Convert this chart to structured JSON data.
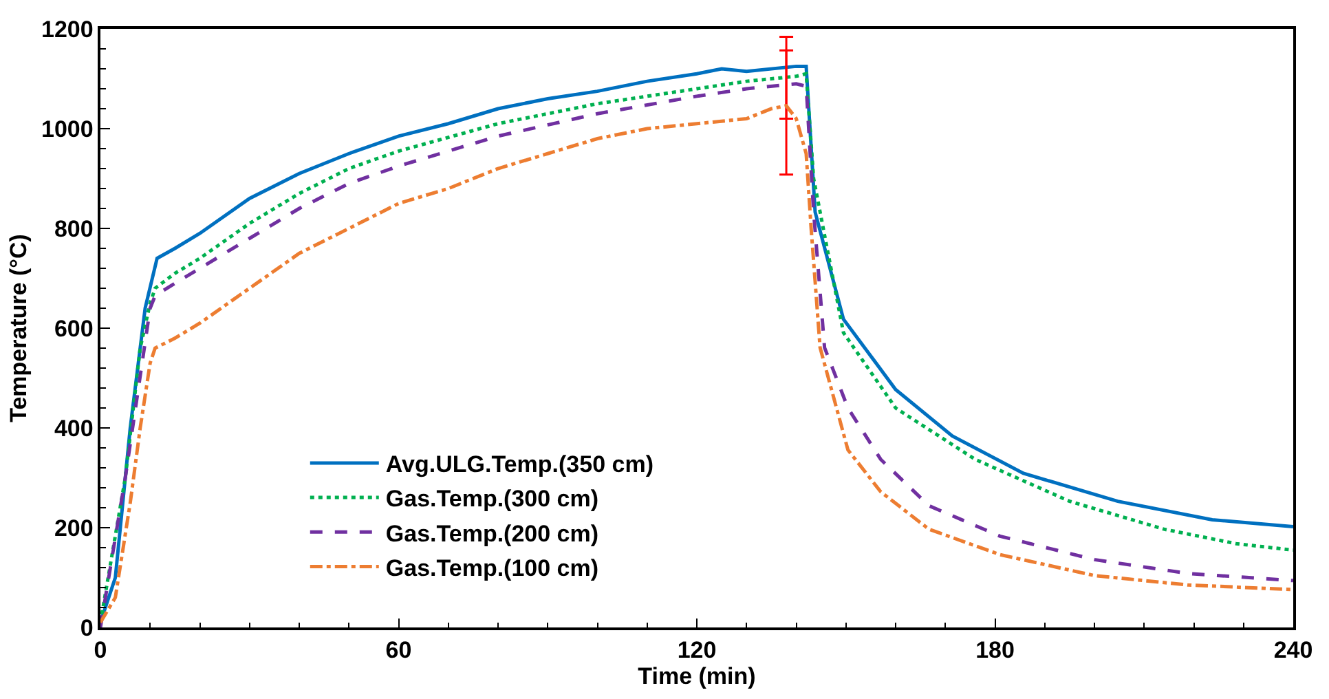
{
  "chart_data": {
    "type": "line",
    "xlabel": "Time (min)",
    "ylabel": "Temperature (°C)",
    "xlim": [
      0,
      240
    ],
    "xticks": [
      0,
      60,
      120,
      180,
      240
    ],
    "ylim": [
      0,
      1200
    ],
    "yticks": [
      0,
      200,
      400,
      600,
      800,
      1000,
      1200
    ],
    "legend": "bottom left",
    "marker": "none",
    "series": [
      {
        "name": "Avg.ULG.Temp.(350 cm)",
        "color": "#0070c0",
        "line_style": "solid",
        "x": [
          0,
          3,
          6,
          9,
          11.4,
          15,
          20,
          30,
          40,
          50,
          60,
          70,
          80,
          90,
          100,
          110,
          120,
          125,
          130,
          140,
          142,
          143.8,
          149.5,
          160,
          171.4,
          185.7,
          204.7,
          223.7,
          240
        ],
        "values": [
          10,
          100,
          400,
          640,
          740,
          760,
          790,
          860,
          910,
          950,
          985,
          1010,
          1040,
          1060,
          1075,
          1095,
          1110,
          1120,
          1115,
          1125,
          1125,
          833,
          618,
          477,
          384,
          309,
          253,
          216,
          202
        ]
      },
      {
        "name": "Gas.Temp.(300 cm)",
        "color": "#00b050",
        "line_style": "dotted",
        "x": [
          0,
          5,
          8,
          10,
          11,
          15,
          20,
          30,
          40,
          50,
          60,
          80,
          100,
          120,
          130,
          140,
          142,
          143.5,
          149.5,
          160,
          176,
          195,
          214,
          228.5,
          240
        ],
        "values": [
          10,
          300,
          560,
          650,
          680,
          710,
          740,
          810,
          870,
          920,
          955,
          1010,
          1050,
          1080,
          1095,
          1105,
          1110,
          900,
          591,
          440,
          337,
          253,
          197,
          168,
          155
        ]
      },
      {
        "name": "Gas.Temp.(200 cm)",
        "color": "#7030a0",
        "line_style": "dashed",
        "x": [
          0,
          5,
          10,
          11,
          15,
          20,
          30,
          40,
          50,
          60,
          80,
          100,
          120,
          130,
          138,
          140,
          142,
          143.5,
          145.7,
          150.4,
          157,
          166.7,
          181,
          200,
          219,
          240
        ],
        "values": [
          0,
          300,
          640,
          665,
          690,
          720,
          780,
          840,
          890,
          925,
          985,
          1030,
          1065,
          1080,
          1088,
          1090,
          1085,
          833,
          561,
          440,
          337,
          244,
          183,
          136,
          108,
          94
        ],
        "errors": [
          null,
          null,
          null,
          null,
          null,
          null,
          null,
          null,
          null,
          null,
          null,
          null,
          null,
          null,
          [
            1020,
            1157
          ],
          null,
          null,
          null,
          null,
          null,
          null,
          null,
          null,
          null,
          null,
          null
        ]
      },
      {
        "name": "Gas.Temp.(100 cm)",
        "color": "#ed7d31",
        "line_style": "dashdot",
        "x": [
          0,
          3,
          6,
          8,
          10,
          11,
          15,
          20,
          30,
          40,
          50,
          60,
          70,
          80,
          90,
          100,
          110,
          120,
          130,
          135,
          138,
          140,
          142,
          143,
          144.8,
          150.4,
          157,
          166.7,
          181,
          200,
          219,
          240
        ],
        "values": [
          10,
          60,
          250,
          400,
          530,
          560,
          580,
          610,
          680,
          750,
          800,
          850,
          880,
          920,
          950,
          980,
          1000,
          1010,
          1020,
          1040,
          1046,
          1020,
          950,
          800,
          561,
          356,
          272,
          197,
          146,
          104,
          85,
          76
        ],
        "errors": [
          null,
          null,
          null,
          null,
          null,
          null,
          null,
          null,
          null,
          null,
          null,
          null,
          null,
          null,
          null,
          null,
          null,
          null,
          null,
          null,
          [
            908,
            1184
          ],
          null,
          null,
          null,
          null,
          null,
          null,
          null,
          null,
          null,
          null,
          null
        ]
      }
    ]
  }
}
